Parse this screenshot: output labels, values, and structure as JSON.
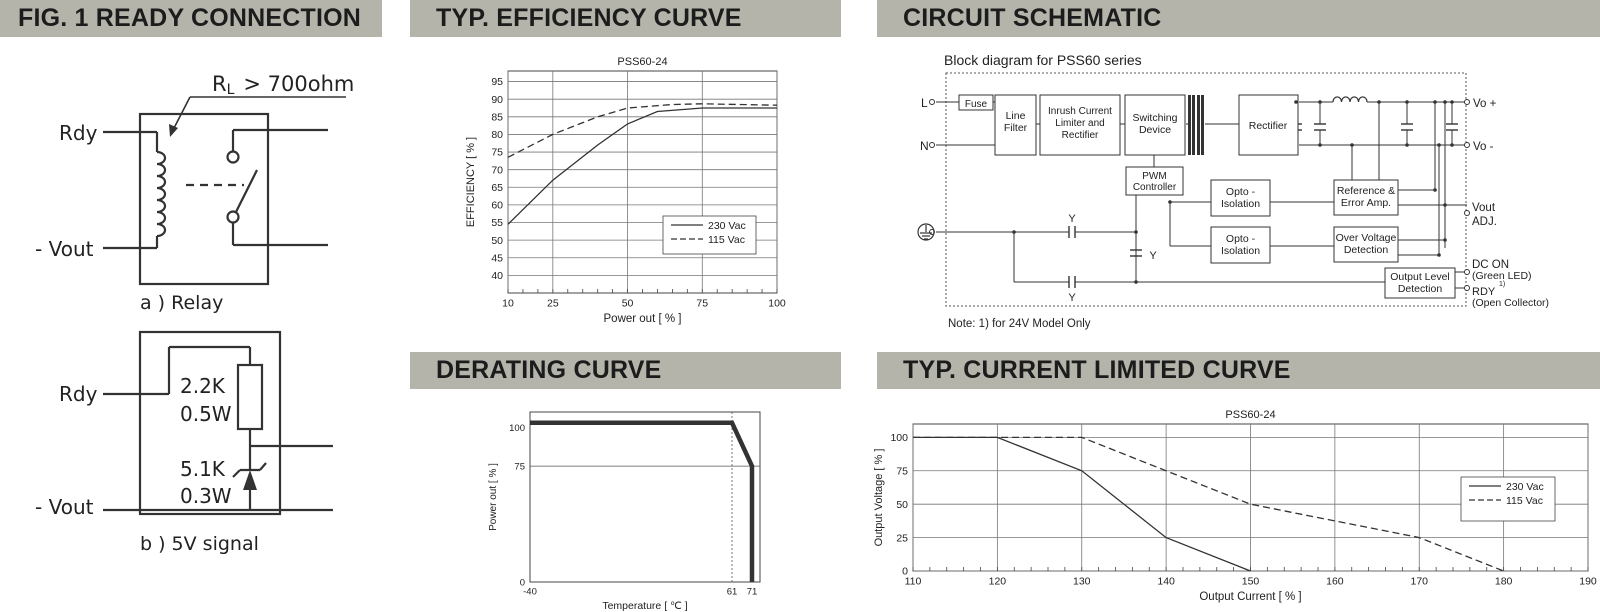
{
  "headers": {
    "fig1": "FIG. 1 READY CONNECTION",
    "efficiency": "TYP. EFFICIENCY CURVE",
    "schematic": "CIRCUIT SCHEMATIC",
    "derating": "DERATING CURVE",
    "current_limit": "TYP. CURRENT LIMITED CURVE"
  },
  "fig1": {
    "relay": {
      "rl_prefix": "R",
      "rl_sub": "L",
      "rl_suffix": "> 700ohm",
      "rdy": "Rdy",
      "vout": "- Vout",
      "caption": "a ) Relay"
    },
    "signal": {
      "rdy": "Rdy",
      "r1": "2.2K",
      "r1_w": "0.5W",
      "z": "5.1K",
      "z_w": "0.3W",
      "vout": "- Vout",
      "caption": "b ) 5V signal"
    }
  },
  "schematic": {
    "title": "Block diagram for PSS60 series",
    "note": "Note: 1) for 24V Model Only",
    "inputs": {
      "l": "L",
      "n": "N"
    },
    "blocks": {
      "fuse": "Fuse",
      "line_filter": [
        "Line",
        "Filter"
      ],
      "inrush": [
        "Inrush Current",
        "Limiter and",
        "Rectifier"
      ],
      "switching": [
        "Switching",
        "Device"
      ],
      "rectifier": "Rectifier",
      "pwm": [
        "PWM",
        "Controller"
      ],
      "opto1": [
        "Opto -",
        "Isolation"
      ],
      "opto2": [
        "Opto -",
        "Isolation"
      ],
      "reference": [
        "Reference &",
        "Error Amp."
      ],
      "ovp": [
        "Over Voltage",
        "Detection"
      ],
      "output_level": [
        "Output Level",
        "Detection"
      ]
    },
    "y_labels": [
      "Y",
      "Y",
      "Y"
    ],
    "outputs": {
      "vo_plus": "Vo +",
      "vo_minus": "Vo -",
      "vout": "Vout",
      "adj": "ADJ.",
      "dc_on": "DC ON",
      "green_led": "(Green LED)",
      "rdy": "RDY",
      "rdy_note": "1)",
      "open_collector": "(Open Collector)"
    }
  },
  "chart_data": [
    {
      "id": "efficiency",
      "type": "line",
      "title": "PSS60-24",
      "xlabel": "Power  out [ % ]",
      "ylabel": "EFFICIENCY [ % ]",
      "xlim": [
        10,
        100
      ],
      "ylim": [
        35,
        98
      ],
      "x_ticks": [
        10,
        25,
        50,
        75,
        100
      ],
      "y_ticks": [
        40,
        45,
        50,
        55,
        60,
        65,
        70,
        75,
        80,
        85,
        90,
        95
      ],
      "grid": true,
      "legend_position": "bottom-right",
      "series": [
        {
          "name": "230 Vac",
          "dash": false,
          "points": [
            [
              10,
              54.5
            ],
            [
              25,
              67
            ],
            [
              40,
              77
            ],
            [
              50,
              83
            ],
            [
              60,
              86.5
            ],
            [
              75,
              87.5
            ],
            [
              100,
              87.5
            ]
          ]
        },
        {
          "name": "115 Vac",
          "dash": true,
          "points": [
            [
              10,
              73.5
            ],
            [
              25,
              80
            ],
            [
              40,
              85
            ],
            [
              50,
              87.5
            ],
            [
              65,
              88.5
            ],
            [
              75,
              88.7
            ],
            [
              100,
              88.3
            ]
          ]
        }
      ]
    },
    {
      "id": "derating",
      "type": "line",
      "xlabel": "Temperature [ ℃ ]",
      "ylabel": "Power out [ % ]",
      "xlim": [
        -40,
        75
      ],
      "ylim": [
        0,
        110
      ],
      "x_ticks": [
        -40,
        61,
        71
      ],
      "y_ticks": [
        0,
        75,
        100
      ],
      "grid": false,
      "series": [
        {
          "points": [
            [
              -40,
              103
            ],
            [
              61,
              103
            ],
            [
              71,
              75
            ],
            [
              71,
              0
            ]
          ]
        }
      ]
    },
    {
      "id": "current_limit",
      "type": "line",
      "title": "PSS60-24",
      "xlabel": "Output Current [ % ]",
      "ylabel": "Output Voltage [ % ]",
      "xlim": [
        110,
        190
      ],
      "ylim": [
        0,
        110
      ],
      "x_ticks": [
        110,
        120,
        130,
        140,
        150,
        160,
        170,
        180,
        190
      ],
      "y_ticks": [
        0,
        25,
        50,
        75,
        100
      ],
      "grid": true,
      "legend_position": "right",
      "series": [
        {
          "name": "230 Vac",
          "dash": false,
          "points": [
            [
              110,
              100
            ],
            [
              120,
              100
            ],
            [
              130,
              75
            ],
            [
              140,
              25
            ],
            [
              150,
              0
            ]
          ]
        },
        {
          "name": "115 Vac",
          "dash": true,
          "points": [
            [
              110,
              100
            ],
            [
              130,
              100
            ],
            [
              140,
              75
            ],
            [
              150,
              50
            ],
            [
              170,
              25
            ],
            [
              180,
              0
            ]
          ]
        }
      ]
    }
  ]
}
